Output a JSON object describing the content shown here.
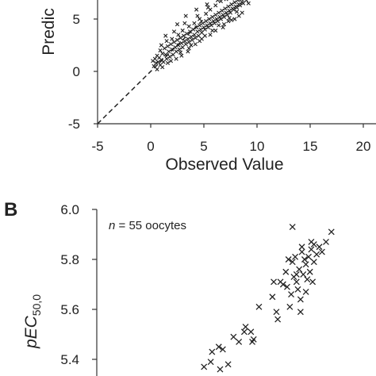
{
  "panel_b_label": "B",
  "chart_data": [
    {
      "id": "panel-a",
      "type": "scatter",
      "xlabel": "Observed Value",
      "ylabel": "Predic",
      "xlim": [
        -5,
        20
      ],
      "ylim": [
        -5,
        7
      ],
      "xticks": [
        -5,
        0,
        5,
        10,
        15,
        20
      ],
      "xtick_labels": [
        "-5",
        "0",
        "5",
        "10",
        "15",
        "20"
      ],
      "yticks": [
        -5,
        0,
        5
      ],
      "ytick_labels": [
        "-5",
        "0",
        "5"
      ],
      "reference_line": {
        "style": "dashed",
        "from": [
          -5,
          -5
        ],
        "to": [
          5,
          5
        ]
      },
      "marker": "x",
      "points": [
        [
          0.4,
          1.2
        ],
        [
          0.5,
          0.8
        ],
        [
          0.6,
          1.5
        ],
        [
          0.7,
          0.9
        ],
        [
          0.8,
          1.3
        ],
        [
          0.9,
          2.0
        ],
        [
          1.0,
          1.1
        ],
        [
          1.1,
          1.7
        ],
        [
          1.2,
          0.9
        ],
        [
          1.3,
          2.2
        ],
        [
          1.4,
          1.6
        ],
        [
          1.5,
          1.2
        ],
        [
          1.6,
          2.4
        ],
        [
          1.7,
          1.9
        ],
        [
          1.8,
          1.4
        ],
        [
          1.9,
          2.6
        ],
        [
          2.0,
          2.1
        ],
        [
          2.1,
          1.6
        ],
        [
          2.2,
          2.8
        ],
        [
          2.3,
          2.3
        ],
        [
          2.4,
          1.9
        ],
        [
          2.5,
          3.0
        ],
        [
          2.6,
          2.5
        ],
        [
          2.7,
          2.1
        ],
        [
          2.8,
          3.2
        ],
        [
          2.9,
          2.7
        ],
        [
          3.0,
          2.3
        ],
        [
          3.1,
          3.4
        ],
        [
          3.2,
          2.9
        ],
        [
          3.3,
          2.6
        ],
        [
          3.4,
          3.6
        ],
        [
          3.5,
          3.1
        ],
        [
          3.6,
          2.8
        ],
        [
          3.7,
          3.8
        ],
        [
          3.8,
          3.3
        ],
        [
          3.9,
          3.0
        ],
        [
          4.0,
          4.0
        ],
        [
          4.1,
          3.5
        ],
        [
          4.2,
          3.2
        ],
        [
          4.3,
          4.2
        ],
        [
          4.4,
          3.8
        ],
        [
          4.5,
          3.4
        ],
        [
          4.6,
          4.4
        ],
        [
          4.7,
          4.0
        ],
        [
          4.8,
          3.7
        ],
        [
          4.9,
          4.6
        ],
        [
          5.0,
          4.2
        ],
        [
          5.1,
          4.0
        ],
        [
          5.2,
          4.8
        ],
        [
          5.3,
          4.4
        ],
        [
          5.4,
          4.2
        ],
        [
          5.5,
          5.0
        ],
        [
          5.6,
          4.6
        ],
        [
          5.7,
          4.4
        ],
        [
          5.8,
          5.2
        ],
        [
          5.9,
          4.8
        ],
        [
          6.0,
          4.6
        ],
        [
          6.1,
          5.4
        ],
        [
          6.2,
          5.0
        ],
        [
          6.3,
          4.8
        ],
        [
          6.4,
          5.6
        ],
        [
          6.5,
          5.2
        ],
        [
          6.6,
          5.0
        ],
        [
          6.7,
          5.8
        ],
        [
          6.8,
          5.4
        ],
        [
          6.9,
          5.2
        ],
        [
          7.0,
          6.0
        ],
        [
          7.1,
          5.6
        ],
        [
          7.2,
          5.4
        ],
        [
          7.3,
          6.2
        ],
        [
          7.4,
          5.8
        ],
        [
          7.5,
          5.6
        ],
        [
          7.6,
          6.4
        ],
        [
          7.7,
          6.0
        ],
        [
          7.8,
          5.9
        ],
        [
          7.9,
          6.6
        ],
        [
          8.0,
          6.2
        ],
        [
          8.1,
          6.1
        ],
        [
          8.2,
          6.8
        ],
        [
          8.3,
          6.4
        ],
        [
          8.4,
          6.3
        ],
        [
          8.5,
          6.9
        ],
        [
          8.6,
          6.6
        ],
        [
          8.7,
          6.5
        ],
        [
          8.8,
          7.0
        ],
        [
          0.3,
          0.5
        ],
        [
          0.2,
          1.0
        ],
        [
          1.0,
          2.5
        ],
        [
          1.5,
          2.9
        ],
        [
          2.0,
          3.1
        ],
        [
          2.6,
          3.5
        ],
        [
          3.0,
          3.9
        ],
        [
          3.6,
          4.3
        ],
        [
          4.1,
          4.6
        ],
        [
          4.6,
          5.0
        ],
        [
          5.2,
          5.5
        ],
        [
          5.6,
          5.9
        ],
        [
          6.1,
          6.3
        ],
        [
          6.6,
          6.7
        ],
        [
          7.1,
          6.9
        ],
        [
          3.2,
          4.6
        ],
        [
          4.4,
          5.3
        ],
        [
          5.4,
          6.1
        ],
        [
          2.2,
          3.8
        ],
        [
          6.9,
          4.5
        ],
        [
          7.3,
          4.8
        ],
        [
          6.1,
          3.9
        ],
        [
          5.1,
          3.4
        ],
        [
          4.6,
          2.9
        ],
        [
          3.6,
          2.2
        ],
        [
          8.3,
          5.3
        ],
        [
          7.9,
          5.0
        ],
        [
          1.1,
          0.4
        ],
        [
          2.4,
          1.2
        ],
        [
          3.5,
          1.9
        ],
        [
          0.6,
          0.2
        ],
        [
          1.6,
          0.8
        ],
        [
          2.9,
          1.5
        ],
        [
          4.2,
          2.6
        ],
        [
          5.6,
          3.5
        ],
        [
          6.8,
          4.2
        ],
        [
          7.6,
          4.9
        ],
        [
          8.6,
          5.6
        ],
        [
          9.0,
          6.8
        ],
        [
          9.2,
          6.5
        ],
        [
          3.3,
          5.3
        ],
        [
          4.3,
          5.9
        ],
        [
          2.5,
          4.5
        ],
        [
          1.4,
          3.4
        ],
        [
          5.3,
          6.4
        ],
        [
          6.3,
          6.8
        ],
        [
          0.9,
          0.6
        ],
        [
          1.9,
          1.0
        ],
        [
          2.8,
          1.8
        ],
        [
          3.8,
          2.5
        ],
        [
          4.8,
          3.1
        ],
        [
          5.8,
          3.9
        ],
        [
          6.4,
          4.4
        ],
        [
          7.4,
          5.1
        ],
        [
          8.1,
          5.7
        ]
      ]
    },
    {
      "id": "panel-b",
      "type": "scatter",
      "title": "",
      "annotation_n": "n",
      "annotation_rest": " = 55 oocytes",
      "ylabel_main": "pEC",
      "ylabel_sub": "50,0",
      "ylim": [
        5.35,
        6.0
      ],
      "yticks": [
        5.4,
        5.6,
        5.8,
        6.0
      ],
      "ytick_labels": [
        "5.4",
        "5.6",
        "5.8",
        "6.0"
      ],
      "xlim": [
        0,
        10
      ],
      "marker": "x",
      "points": [
        [
          4.0,
          5.37
        ],
        [
          4.3,
          5.43
        ],
        [
          4.55,
          5.45
        ],
        [
          4.25,
          5.39
        ],
        [
          4.7,
          5.44
        ],
        [
          4.9,
          5.38
        ],
        [
          5.1,
          5.49
        ],
        [
          4.6,
          5.36
        ],
        [
          5.3,
          5.47
        ],
        [
          5.55,
          5.53
        ],
        [
          5.5,
          5.51
        ],
        [
          5.75,
          5.51
        ],
        [
          5.8,
          5.47
        ],
        [
          5.85,
          5.48
        ],
        [
          6.05,
          5.61
        ],
        [
          6.55,
          5.65
        ],
        [
          6.7,
          5.59
        ],
        [
          6.85,
          5.71
        ],
        [
          6.95,
          5.7
        ],
        [
          6.75,
          5.56
        ],
        [
          7.05,
          5.75
        ],
        [
          7.1,
          5.69
        ],
        [
          7.25,
          5.66
        ],
        [
          7.2,
          5.61
        ],
        [
          7.3,
          5.79
        ],
        [
          7.35,
          5.73
        ],
        [
          7.4,
          5.81
        ],
        [
          7.45,
          5.71
        ],
        [
          7.5,
          5.68
        ],
        [
          7.55,
          5.76
        ],
        [
          7.6,
          5.64
        ],
        [
          7.65,
          5.83
        ],
        [
          7.7,
          5.74
        ],
        [
          7.75,
          5.8
        ],
        [
          7.8,
          5.78
        ],
        [
          7.85,
          5.72
        ],
        [
          7.9,
          5.81
        ],
        [
          7.95,
          5.75
        ],
        [
          8.0,
          5.84
        ],
        [
          8.05,
          5.71
        ],
        [
          8.1,
          5.86
        ],
        [
          8.2,
          5.82
        ],
        [
          8.3,
          5.85
        ],
        [
          8.4,
          5.83
        ],
        [
          8.55,
          5.87
        ],
        [
          8.75,
          5.91
        ],
        [
          7.3,
          5.93
        ],
        [
          7.6,
          5.59
        ],
        [
          8.1,
          5.79
        ],
        [
          7.45,
          5.74
        ],
        [
          7.15,
          5.8
        ],
        [
          6.6,
          5.71
        ],
        [
          7.8,
          5.67
        ],
        [
          7.65,
          5.85
        ],
        [
          8.0,
          5.87
        ]
      ]
    }
  ]
}
